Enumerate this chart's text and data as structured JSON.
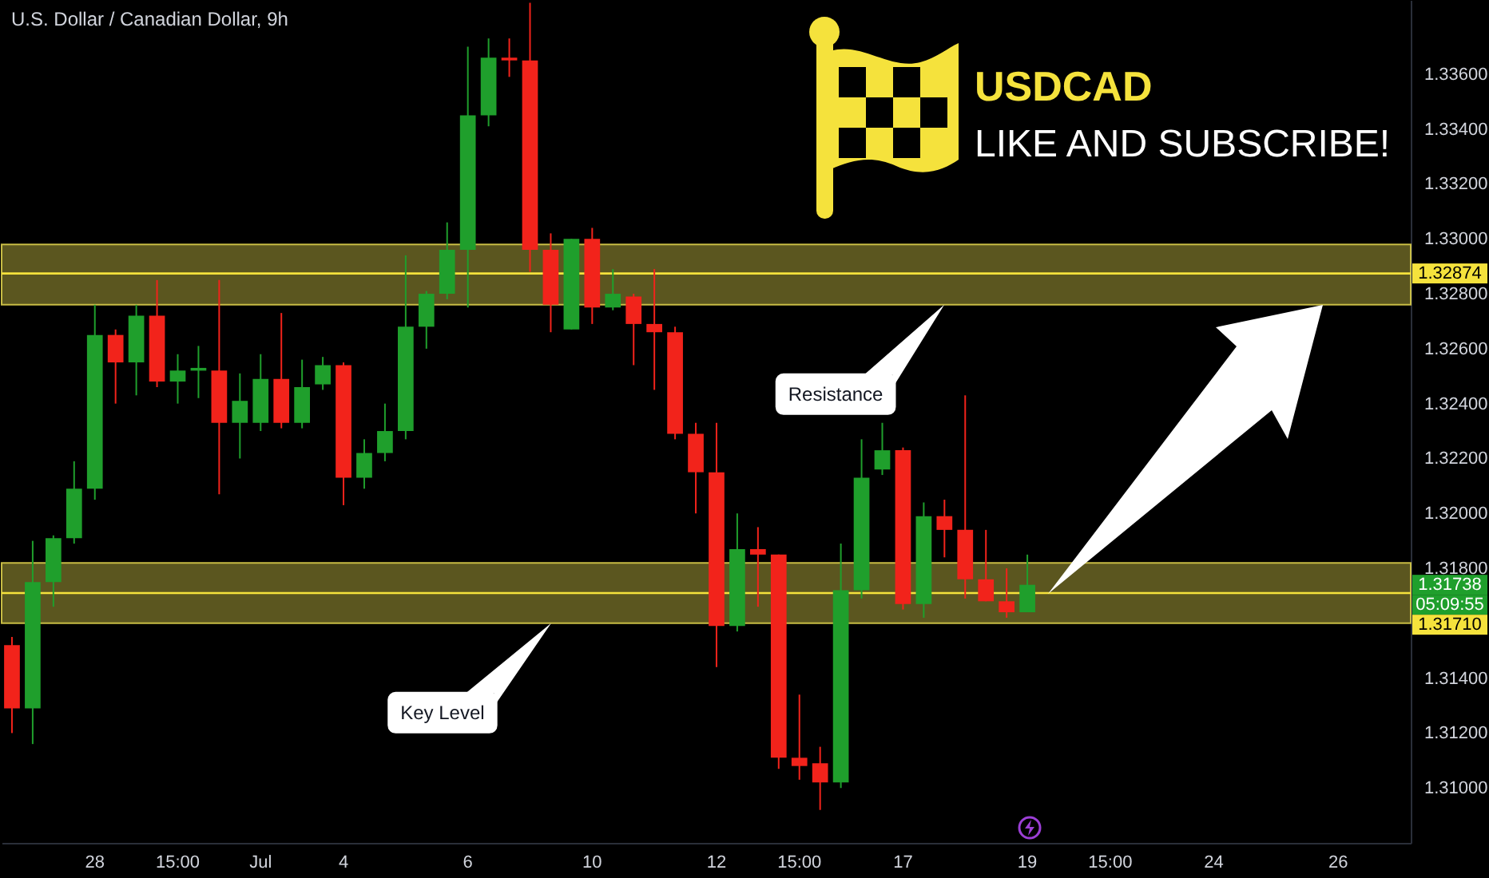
{
  "chart_data": {
    "type": "candlestick",
    "title": "U.S. Dollar / Canadian Dollar, 9h",
    "categories": [
      null,
      null,
      null,
      null,
      "28",
      null,
      null,
      null,
      "15:00",
      null,
      null,
      null,
      "Jul",
      null,
      null,
      null,
      "4",
      null,
      null,
      null,
      null,
      null,
      "6",
      null,
      null,
      null,
      null,
      null,
      "10",
      null,
      null,
      null,
      null,
      null,
      "12",
      null,
      null,
      null,
      "15:00",
      null,
      null,
      null,
      null,
      "17",
      null,
      null,
      null,
      null,
      null,
      "19",
      null,
      null,
      null,
      "15:00",
      null,
      null,
      null,
      null,
      "24",
      null,
      null,
      null,
      null,
      null,
      "26",
      null,
      null,
      null
    ],
    "ohlc": [
      [
        1.3152,
        1.3155,
        1.312,
        1.3129
      ],
      [
        1.3129,
        1.319,
        1.3116,
        1.3175
      ],
      [
        1.3175,
        1.3192,
        1.3166,
        1.3191
      ],
      [
        1.3191,
        1.3219,
        1.3189,
        1.3209
      ],
      [
        1.3209,
        1.3276,
        1.3205,
        1.3265
      ],
      [
        1.3265,
        1.3267,
        1.324,
        1.3255
      ],
      [
        1.3255,
        1.3276,
        1.3243,
        1.3272
      ],
      [
        1.3272,
        1.3285,
        1.3246,
        1.3248
      ],
      [
        1.3248,
        1.3258,
        1.324,
        1.3252
      ],
      [
        1.3252,
        1.3261,
        1.3242,
        1.3253
      ],
      [
        1.3252,
        1.3285,
        1.3207,
        1.3233
      ],
      [
        1.3233,
        1.3251,
        1.322,
        1.3241
      ],
      [
        1.3233,
        1.3258,
        1.323,
        1.3249
      ],
      [
        1.3249,
        1.3273,
        1.3231,
        1.3233
      ],
      [
        1.3233,
        1.3256,
        1.3231,
        1.3246
      ],
      [
        1.3247,
        1.3257,
        1.3245,
        1.3254
      ],
      [
        1.3254,
        1.3255,
        1.3203,
        1.3213
      ],
      [
        1.3213,
        1.3227,
        1.3209,
        1.3222
      ],
      [
        1.3222,
        1.324,
        1.3219,
        1.323
      ],
      [
        1.323,
        1.3294,
        1.3227,
        1.3268
      ],
      [
        1.3268,
        1.3281,
        1.326,
        1.328
      ],
      [
        1.328,
        1.3306,
        1.3278,
        1.3296
      ],
      [
        1.3296,
        1.337,
        1.3275,
        1.3345
      ],
      [
        1.3345,
        1.3373,
        1.3341,
        1.3366
      ],
      [
        1.3366,
        1.3373,
        1.3359,
        1.3365
      ],
      [
        1.3365,
        1.3386,
        1.3288,
        1.3296
      ],
      [
        1.3296,
        1.3302,
        1.3266,
        1.3276
      ],
      [
        1.3267,
        1.33,
        1.3267,
        1.33
      ],
      [
        1.33,
        1.3304,
        1.3269,
        1.3275
      ],
      [
        1.3275,
        1.3289,
        1.3274,
        1.328
      ],
      [
        1.3279,
        1.328,
        1.3254,
        1.3269
      ],
      [
        1.3269,
        1.3289,
        1.3245,
        1.3266
      ],
      [
        1.3266,
        1.3268,
        1.3227,
        1.3229
      ],
      [
        1.3229,
        1.3233,
        1.32,
        1.3215
      ],
      [
        1.3215,
        1.3233,
        1.3144,
        1.3159
      ],
      [
        1.3159,
        1.32,
        1.3157,
        1.3187
      ],
      [
        1.3187,
        1.3195,
        1.3166,
        1.3185
      ],
      [
        1.3185,
        1.3185,
        1.3107,
        1.3111
      ],
      [
        1.3111,
        1.3134,
        1.3103,
        1.3108
      ],
      [
        1.3109,
        1.3115,
        1.3092,
        1.3102
      ],
      [
        1.3102,
        1.3189,
        1.31,
        1.3172
      ],
      [
        1.3172,
        1.3227,
        1.3169,
        1.3213
      ],
      [
        1.3216,
        1.3233,
        1.3214,
        1.3223
      ],
      [
        1.3223,
        1.3224,
        1.3165,
        1.3167
      ],
      [
        1.3167,
        1.3204,
        1.3162,
        1.3199
      ],
      [
        1.3199,
        1.3205,
        1.3184,
        1.3194
      ],
      [
        1.3194,
        1.3243,
        1.3169,
        1.3176
      ],
      [
        1.3176,
        1.3194,
        1.3168,
        1.3168
      ],
      [
        1.3168,
        1.318,
        1.3162,
        1.3164
      ],
      [
        1.3164,
        1.3185,
        1.3164,
        1.3174
      ],
      null,
      null,
      null,
      null,
      null,
      null,
      null,
      null,
      null,
      null,
      null,
      null,
      null,
      null,
      null,
      null,
      null,
      null
    ],
    "colors": [
      "#f2231b",
      "#1f9f2c",
      "#1f9f2c",
      "#1f9f2c",
      "#1f9f2c",
      "#f2231b",
      "#1f9f2c",
      "#f2231b",
      "#1f9f2c",
      "#1f9f2c",
      "#f2231b",
      "#1f9f2c",
      "#1f9f2c",
      "#f2231b",
      "#1f9f2c",
      "#1f9f2c",
      "#f2231b",
      "#1f9f2c",
      "#1f9f2c",
      "#1f9f2c",
      "#1f9f2c",
      "#1f9f2c",
      "#1f9f2c",
      "#1f9f2c",
      "#f2231b",
      "#f2231b",
      "#f2231b",
      "#1f9f2c",
      "#f2231b",
      "#1f9f2c",
      "#f2231b",
      "#f2231b",
      "#f2231b",
      "#f2231b",
      "#f2231b",
      "#1f9f2c",
      "#f2231b",
      "#f2231b",
      "#f2231b",
      "#f2231b",
      "#1f9f2c",
      "#1f9f2c",
      "#1f9f2c",
      "#f2231b",
      "#1f9f2c",
      "#f2231b",
      "#f2231b",
      "#f2231b",
      "#f2231b",
      "#1f9f2c",
      null,
      null,
      null,
      null,
      null,
      null,
      null,
      null,
      null,
      null,
      null,
      null,
      null,
      null,
      null,
      null,
      null,
      null
    ],
    "ylim": [
      1.308,
      1.3387
    ],
    "yticks": [
      {
        "value": 1.31,
        "label": "1.31000"
      },
      {
        "value": 1.312,
        "label": "1.31200"
      },
      {
        "value": 1.314,
        "label": "1.31400"
      },
      {
        "value": 1.318,
        "label": "1.31800"
      },
      {
        "value": 1.32,
        "label": "1.32000"
      },
      {
        "value": 1.322,
        "label": "1.32200"
      },
      {
        "value": 1.324,
        "label": "1.32400"
      },
      {
        "value": 1.326,
        "label": "1.32600"
      },
      {
        "value": 1.328,
        "label": "1.32800"
      },
      {
        "value": 1.33,
        "label": "1.33000"
      },
      {
        "value": 1.332,
        "label": "1.33200"
      },
      {
        "value": 1.334,
        "label": "1.33400"
      },
      {
        "value": 1.336,
        "label": "1.33600"
      }
    ],
    "bands": [
      {
        "axis": "y",
        "from": 1.3276,
        "to": 1.3298,
        "color": "#d8cc4a"
      },
      {
        "axis": "y",
        "from": 1.316,
        "to": 1.3182,
        "color": "#d8cc4a"
      }
    ],
    "ref_lines": [
      {
        "axis": "y",
        "value": 1.32874,
        "label": "1.32874",
        "color": "#f5e23c"
      },
      {
        "axis": "y",
        "value": 1.3171,
        "label": "1.31710",
        "color": "#f5e23c"
      }
    ],
    "annotations": [
      "USDCAD",
      "LIKE AND SUBSCRIBE!",
      "Resistance",
      "Key Level",
      "1.31738",
      "05:09:55"
    ]
  }
}
